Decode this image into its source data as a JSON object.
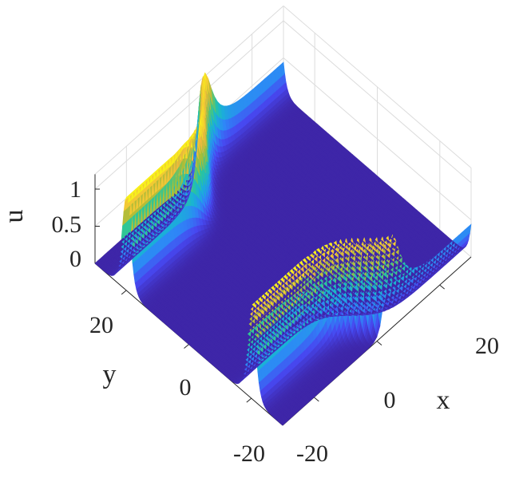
{
  "chart_data": {
    "type": "surface",
    "title": "",
    "colormap": "parula",
    "colormap_stops": [
      "#3e26a8",
      "#4748f0",
      "#2e87f7",
      "#19b2d6",
      "#2bc69a",
      "#a5be38",
      "#f0ba3d",
      "#f9fb15"
    ],
    "shading": "interp",
    "grid": true,
    "view": "3d-isometric",
    "xlabel": "x",
    "ylabel": "y",
    "zlabel": "u",
    "xlim": [
      -30,
      30
    ],
    "ylim": [
      -30,
      30
    ],
    "zlim": [
      0,
      1.2
    ],
    "x_ticks": [
      -20,
      0,
      20
    ],
    "y_ticks": [
      -20,
      0,
      20
    ],
    "z_ticks": [
      0,
      0.5,
      1
    ],
    "x_tick_labels": [
      "-20",
      "0",
      "20"
    ],
    "y_tick_labels": [
      "-20",
      "0",
      "20"
    ],
    "z_tick_labels": [
      "0",
      "0.5",
      "1"
    ],
    "surface_description": "Two line solitons with peak height ~1.25 running parallel to the x axis near y = +26 and y = -26, each with a kink (phase shift) near x = 0; flat zero background elsewhere.",
    "features": [
      {
        "kind": "line-soliton",
        "center_y": 26,
        "amplitude": 1.25,
        "shift_at_x0": 6
      },
      {
        "kind": "line-soliton",
        "center_y": -26,
        "amplitude": 1.25,
        "shift_at_x0": 6
      }
    ]
  }
}
